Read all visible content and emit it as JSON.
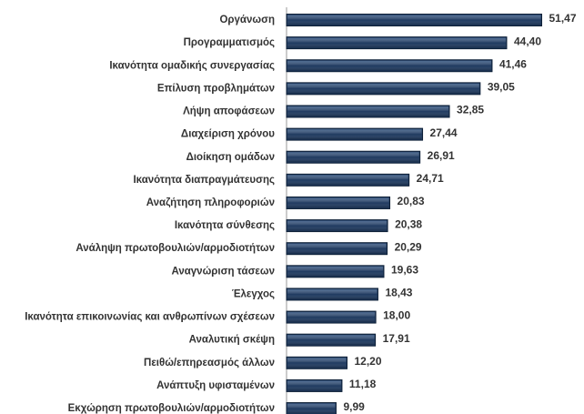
{
  "chart_data": {
    "type": "bar",
    "orientation": "horizontal",
    "categories": [
      "Οργάνωση",
      "Προγραμματισμός",
      "Ικανότητα ομαδικής συνεργασίας",
      "Επίλυση προβλημάτων",
      "Λήψη αποφάσεων",
      "Διαχείριση χρόνου",
      "Διοίκηση ομάδων",
      "Ικανότητα διαπραγμάτευσης",
      "Αναζήτηση πληροφοριών",
      "Ικανότητα σύνθεσης",
      "Ανάληψη πρωτοβουλιών/αρμοδιοτήτων",
      "Αναγνώριση τάσεων",
      "Έλεγχος",
      "Ικανότητα επικοινωνίας και ανθρωπίνων σχέσεων",
      "Αναλυτική σκέψη",
      "Πειθώ/επηρεασμός άλλων",
      "Ανάπτυξη υφισταμένων",
      "Εκχώρηση πρωτοβουλιών/αρμοδιοτήτων"
    ],
    "values": [
      51.47,
      44.4,
      41.46,
      39.05,
      32.85,
      27.44,
      26.91,
      24.71,
      20.83,
      20.38,
      20.29,
      19.63,
      18.43,
      18.0,
      17.91,
      12.2,
      11.18,
      9.99
    ],
    "value_labels": [
      "51,47",
      "44,40",
      "41,46",
      "39,05",
      "32,85",
      "27,44",
      "26,91",
      "24,71",
      "20,83",
      "20,38",
      "20,29",
      "19,63",
      "18,43",
      "18,00",
      "17,91",
      "12,20",
      "11,18",
      "9,99"
    ],
    "color": "#1f3a60",
    "xlim": [
      0,
      60
    ]
  }
}
